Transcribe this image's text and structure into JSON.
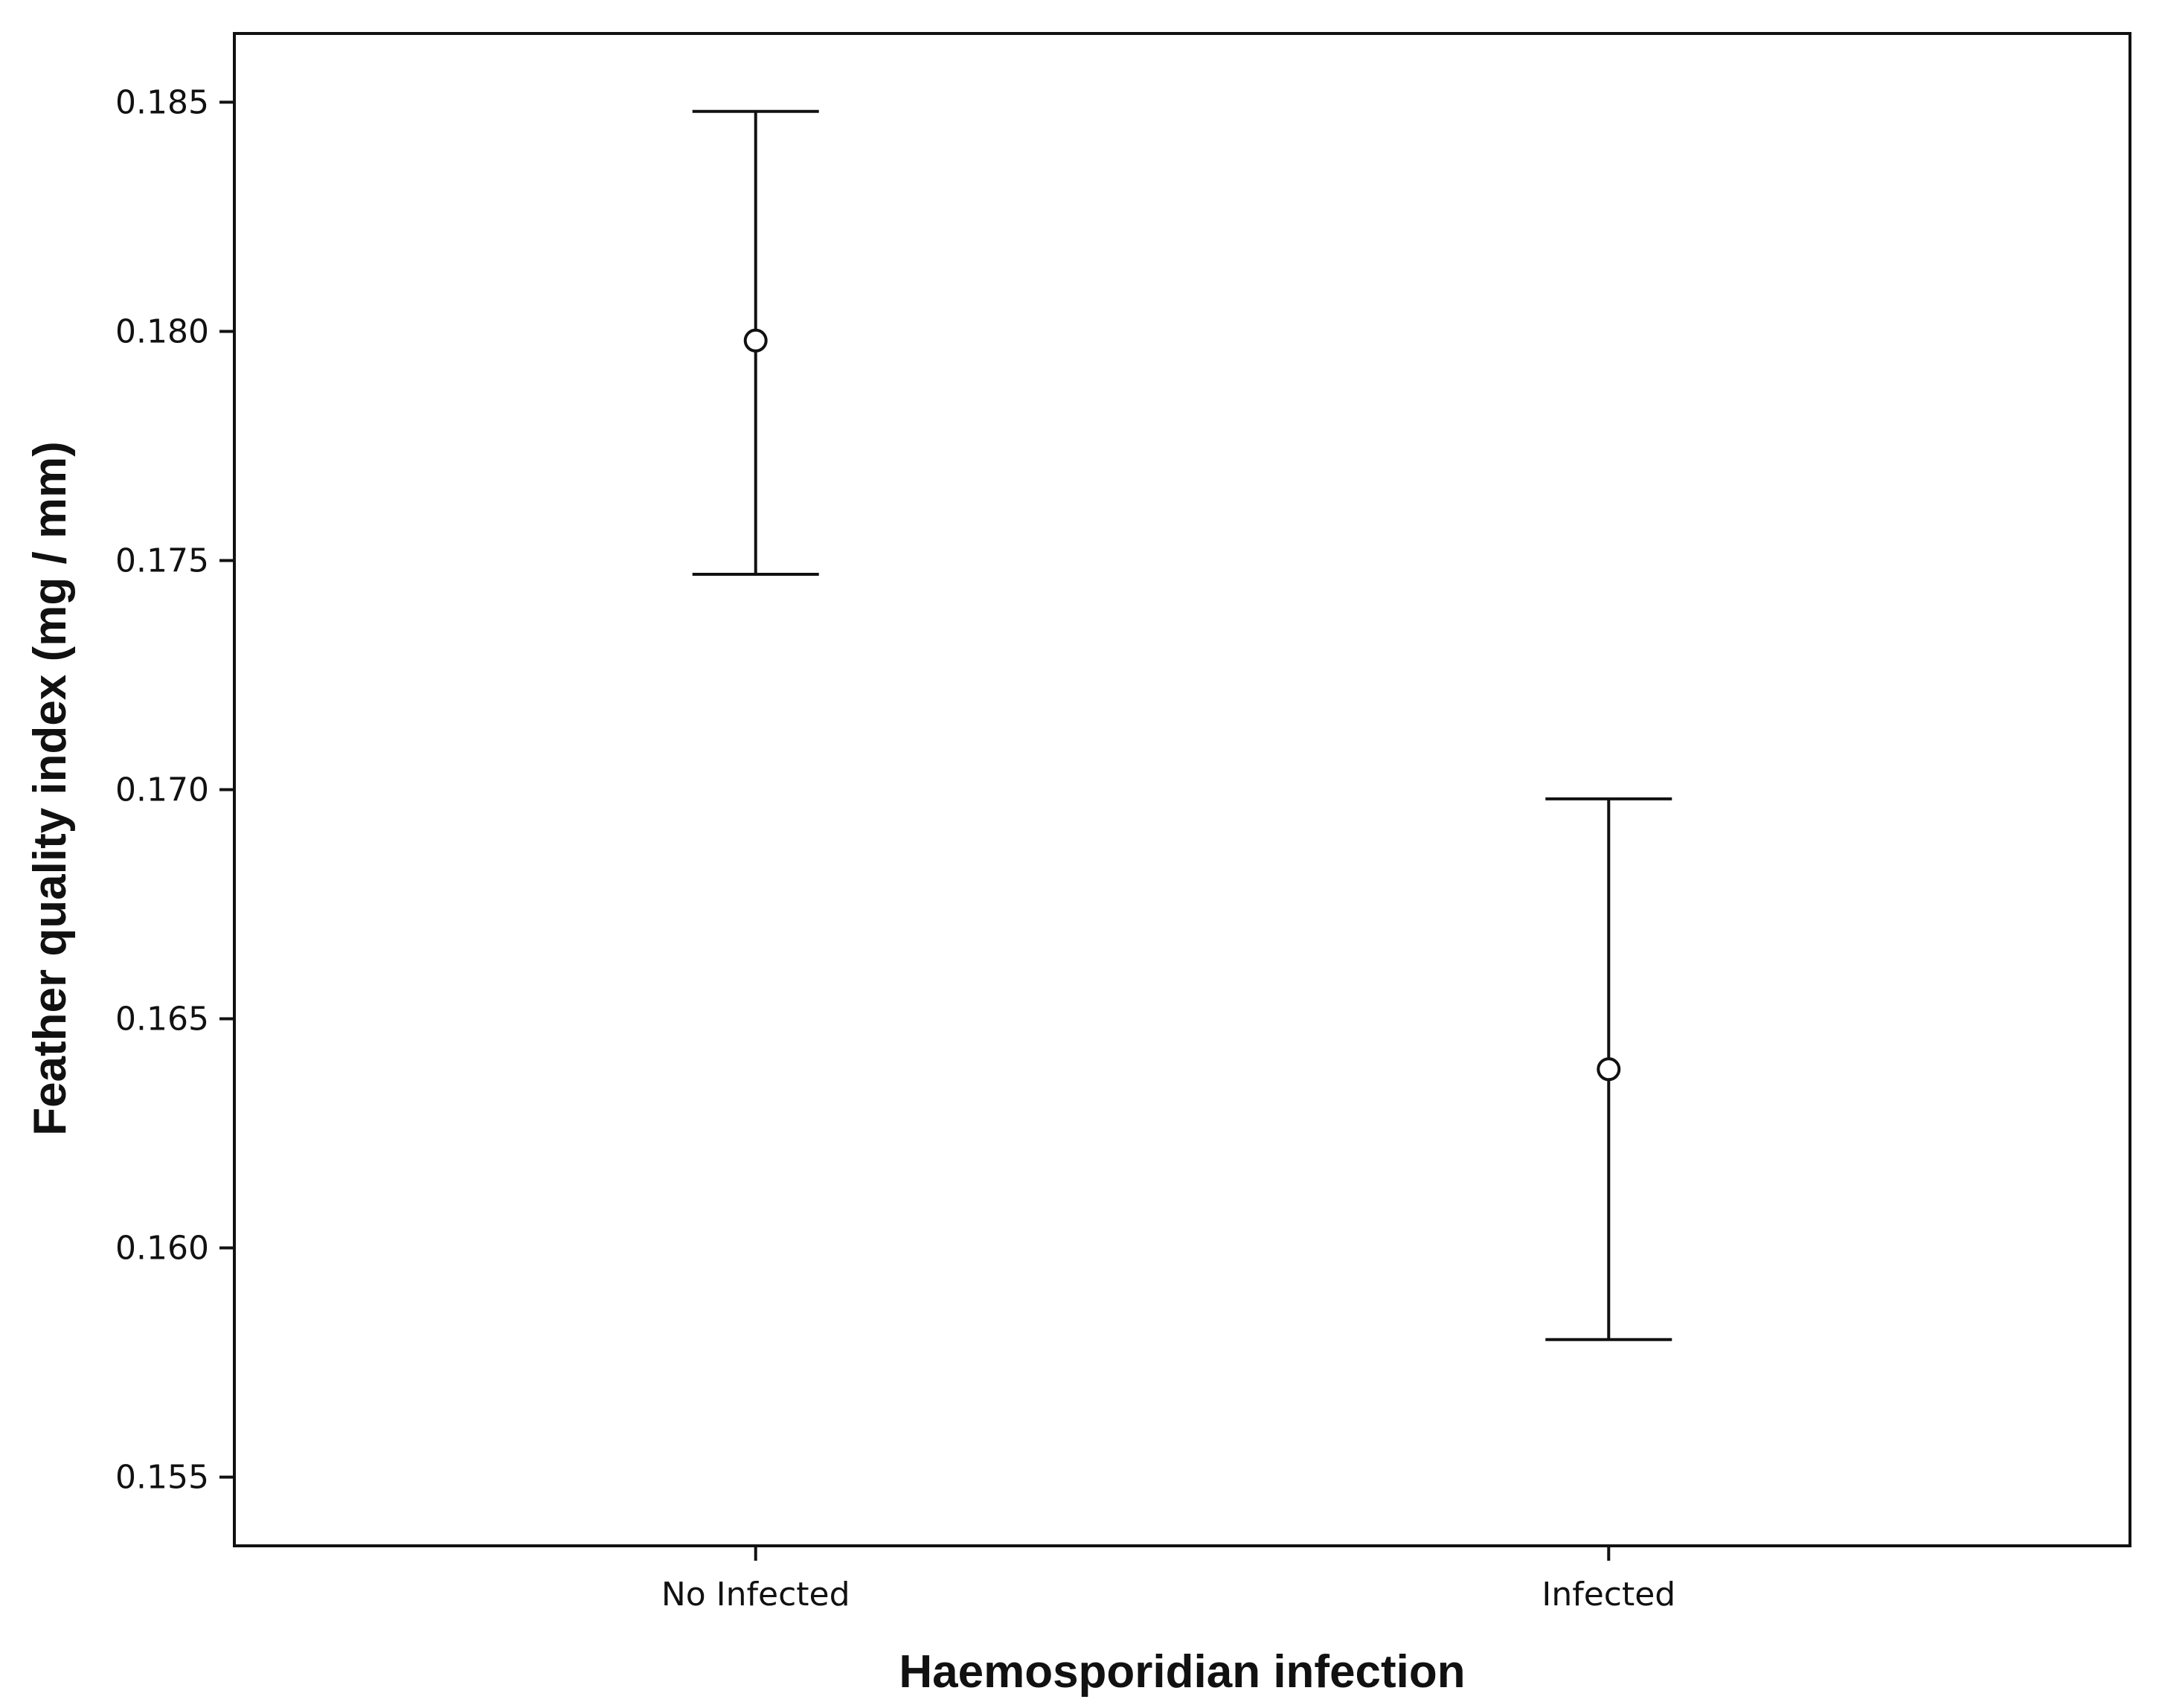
{
  "chart_data": {
    "type": "errorbar",
    "title": "",
    "xlabel": "Haemosporidian infection",
    "ylabel": "Feather quality index (mg / mm)",
    "categories": [
      "No Infected",
      "Infected"
    ],
    "series": [
      {
        "points": [
          {
            "category": "No Infected",
            "mean": 0.1798,
            "lower": 0.1747,
            "upper": 0.1848
          },
          {
            "category": "Infected",
            "mean": 0.1639,
            "lower": 0.158,
            "upper": 0.1698
          }
        ]
      }
    ],
    "yticks": [
      "0.155",
      "0.160",
      "0.165",
      "0.170",
      "0.175",
      "0.180",
      "0.185"
    ],
    "ylim": [
      0.1535,
      0.1865
    ],
    "grid": false,
    "legend": "none",
    "colors": {
      "ink": "#111111",
      "background": "#ffffff"
    }
  }
}
